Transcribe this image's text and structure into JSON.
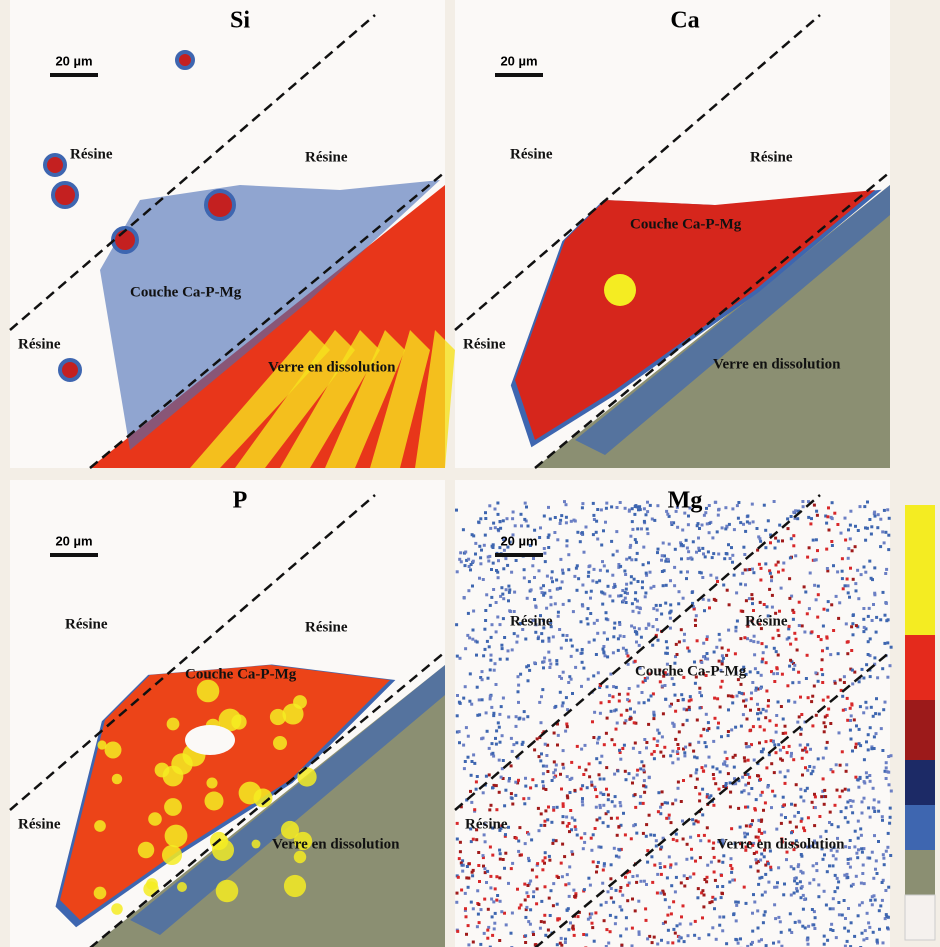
{
  "panels": [
    {
      "title": "Si",
      "scale_bar": "20 µm",
      "labels": [
        "Résine",
        "Résine",
        "Couche Ca-P-Mg",
        "Résine",
        "Verre en dissolution"
      ]
    },
    {
      "title": "Ca",
      "scale_bar": "20 µm",
      "labels": [
        "Résine",
        "Résine",
        "Couche Ca-P-Mg",
        "Résine",
        "Verre en dissolution"
      ]
    },
    {
      "title": "P",
      "scale_bar": "20 µm",
      "labels": [
        "Résine",
        "Résine",
        "Couche Ca-P-Mg",
        "Résine",
        "Verre en dissolution"
      ]
    },
    {
      "title": "Mg",
      "scale_bar": "20 µm",
      "labels": [
        "Résine",
        "Résine",
        "Couche Ca-P-Mg",
        "Résine",
        "Verre en dissolution"
      ]
    }
  ]
}
